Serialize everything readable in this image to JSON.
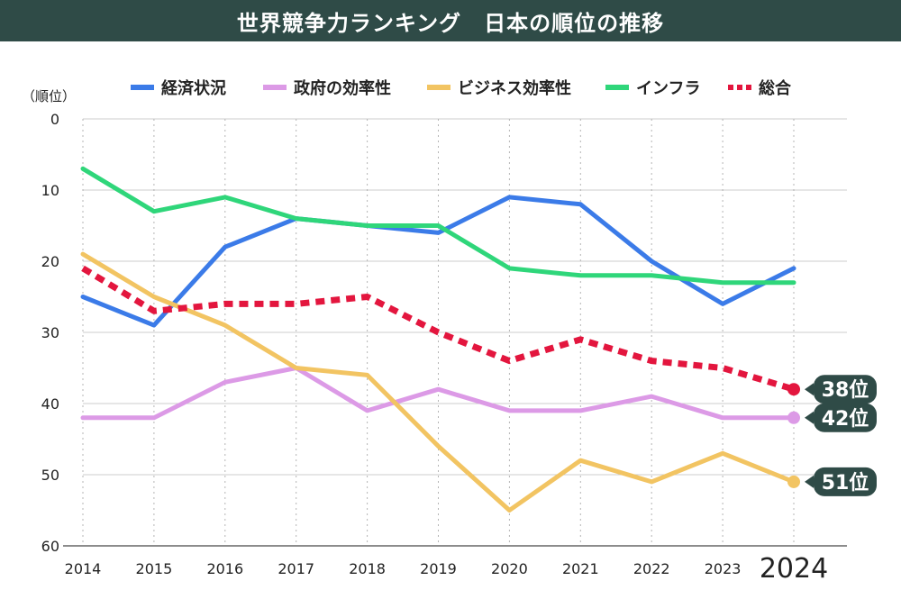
{
  "title": "世界競争力ランキング　日本の順位の推移",
  "colors": {
    "header_bg": "#2f4b47",
    "badge_bg": "#2f4b47",
    "grid": "#cccccc",
    "axis": "#666666"
  },
  "chart_data": {
    "type": "line",
    "title": "世界競争力ランキング　日本の順位の推移",
    "ylabel": "（順位）",
    "xlabel": "",
    "ylim": [
      0,
      60
    ],
    "y_inverted": true,
    "yticks": [
      0,
      10,
      20,
      30,
      40,
      50,
      60
    ],
    "categories": [
      "2014",
      "2015",
      "2016",
      "2017",
      "2018",
      "2019",
      "2020",
      "2021",
      "2022",
      "2023",
      "2024"
    ],
    "highlight_category": "2024",
    "legend_position": "top",
    "series": [
      {
        "name": "経済状況",
        "color": "#3b7be8",
        "style": "solid",
        "values": [
          25,
          29,
          18,
          14,
          15,
          16,
          11,
          12,
          20,
          26,
          21
        ]
      },
      {
        "name": "政府の効率性",
        "color": "#dc9ae6",
        "style": "solid",
        "values": [
          42,
          42,
          37,
          35,
          41,
          38,
          41,
          41,
          39,
          42,
          42
        ],
        "end_label": "42位"
      },
      {
        "name": "ビジネス効率性",
        "color": "#f2c462",
        "style": "solid",
        "values": [
          19,
          25,
          29,
          35,
          36,
          46,
          55,
          48,
          51,
          47,
          51
        ],
        "end_label": "51位"
      },
      {
        "name": "インフラ",
        "color": "#2fd67a",
        "style": "solid",
        "values": [
          7,
          13,
          11,
          14,
          15,
          15,
          21,
          22,
          22,
          23,
          23
        ]
      },
      {
        "name": "総合",
        "color": "#e3163e",
        "style": "dashed",
        "values": [
          21,
          27,
          26,
          26,
          25,
          30,
          34,
          31,
          34,
          35,
          38
        ],
        "end_label": "38位"
      }
    ]
  }
}
